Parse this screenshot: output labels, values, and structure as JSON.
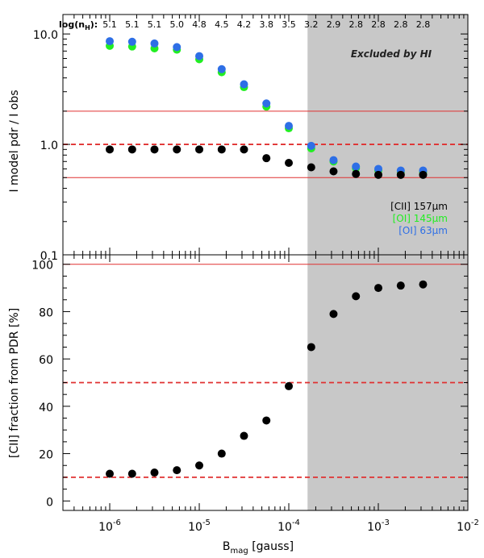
{
  "chart_data": [
    {
      "type": "scatter",
      "panel": "top",
      "xscale": "log",
      "yscale": "log",
      "xlim": [
        3e-07,
        0.01
      ],
      "ylim": [
        0.1,
        15
      ],
      "ylabel": "I model pdr / I obs",
      "yticks": [
        {
          "value": 10,
          "label": "10.0"
        },
        {
          "value": 1,
          "label": "1.0"
        },
        {
          "value": 0.1,
          "label": "0.1"
        }
      ],
      "header_label": "log(n_H):",
      "header_values": [
        "5.1",
        "5.1",
        "5.1",
        "5.0",
        "4.8",
        "4.5",
        "4.2",
        "3.8",
        "3.5",
        "3.2",
        "2.9",
        "2.8",
        "2.8",
        "2.8",
        "2.8"
      ],
      "x": [
        1e-06,
        1.78e-06,
        3.16e-06,
        5.62e-06,
        1e-05,
        1.78e-05,
        3.16e-05,
        5.62e-05,
        0.0001,
        0.000178,
        0.000316,
        0.000562,
        0.001,
        0.00178,
        0.00316
      ],
      "shaded_region": {
        "from": 0.000162,
        "to": 0.01,
        "label": "Excluded by HI",
        "color": "#c8c8c8"
      },
      "hlines": [
        {
          "y": 2.0,
          "style": "solid",
          "color": "#e03030"
        },
        {
          "y": 1.0,
          "style": "dashed",
          "color": "#e03030"
        },
        {
          "y": 0.5,
          "style": "solid",
          "color": "#e03030"
        }
      ],
      "series": [
        {
          "name": "[CII] 157µm",
          "label_main": "[CII] 157",
          "label_unit": "µm",
          "color": "#000000",
          "values": [
            0.9,
            0.9,
            0.9,
            0.9,
            0.9,
            0.9,
            0.9,
            0.75,
            0.68,
            0.62,
            0.57,
            0.54,
            0.53,
            0.53,
            0.53
          ]
        },
        {
          "name": "[OI] 145µm",
          "label_main": "[OI] 145",
          "label_unit": "µm",
          "color": "#22ee22",
          "values": [
            7.8,
            7.7,
            7.4,
            7.2,
            5.9,
            4.5,
            3.3,
            2.2,
            1.4,
            0.92,
            0.7,
            0.61,
            0.58,
            0.56,
            0.56
          ]
        },
        {
          "name": "[OI] 63µm",
          "label_main": "[OI] 63",
          "label_unit": "µm",
          "color": "#2e6fe6",
          "values": [
            8.6,
            8.5,
            8.2,
            7.6,
            6.3,
            4.8,
            3.5,
            2.35,
            1.47,
            0.97,
            0.72,
            0.63,
            0.6,
            0.58,
            0.58
          ]
        }
      ]
    },
    {
      "type": "scatter",
      "panel": "bottom",
      "xscale": "log",
      "yscale": "linear",
      "xlim": [
        3e-07,
        0.01
      ],
      "ylim": [
        -4,
        104
      ],
      "xlabel_main": "B",
      "xlabel_sub": "mag",
      "xlabel_unit": "[gauss]",
      "ylabel": "[CII] fraction from PDR [%]",
      "yticks": [
        0,
        20,
        40,
        60,
        80,
        100
      ],
      "xticks": [
        {
          "value": 1e-06,
          "base": "10",
          "exp": "-6"
        },
        {
          "value": 1e-05,
          "base": "10",
          "exp": "-5"
        },
        {
          "value": 0.0001,
          "base": "10",
          "exp": "-4"
        },
        {
          "value": 0.001,
          "base": "10",
          "exp": "-3"
        },
        {
          "value": 0.01,
          "base": "10",
          "exp": "-2"
        }
      ],
      "shaded_region": {
        "from": 0.000162,
        "to": 0.01,
        "color": "#c8c8c8"
      },
      "hlines": [
        {
          "y": 100,
          "style": "solid",
          "color": "#e03030"
        },
        {
          "y": 50,
          "style": "dashed",
          "color": "#e03030"
        },
        {
          "y": 10,
          "style": "dashed",
          "color": "#e03030"
        }
      ],
      "x": [
        1e-06,
        1.78e-06,
        3.16e-06,
        5.62e-06,
        1e-05,
        1.78e-05,
        3.16e-05,
        5.62e-05,
        0.0001,
        0.000178,
        0.000316,
        0.000562,
        0.001,
        0.00178,
        0.00316
      ],
      "series": [
        {
          "name": "[CII] fraction",
          "color": "#000000",
          "values": [
            11.5,
            11.5,
            12,
            13,
            15,
            20,
            27.5,
            34,
            48.5,
            65,
            79,
            86.5,
            90,
            91,
            91.5
          ]
        }
      ]
    }
  ]
}
